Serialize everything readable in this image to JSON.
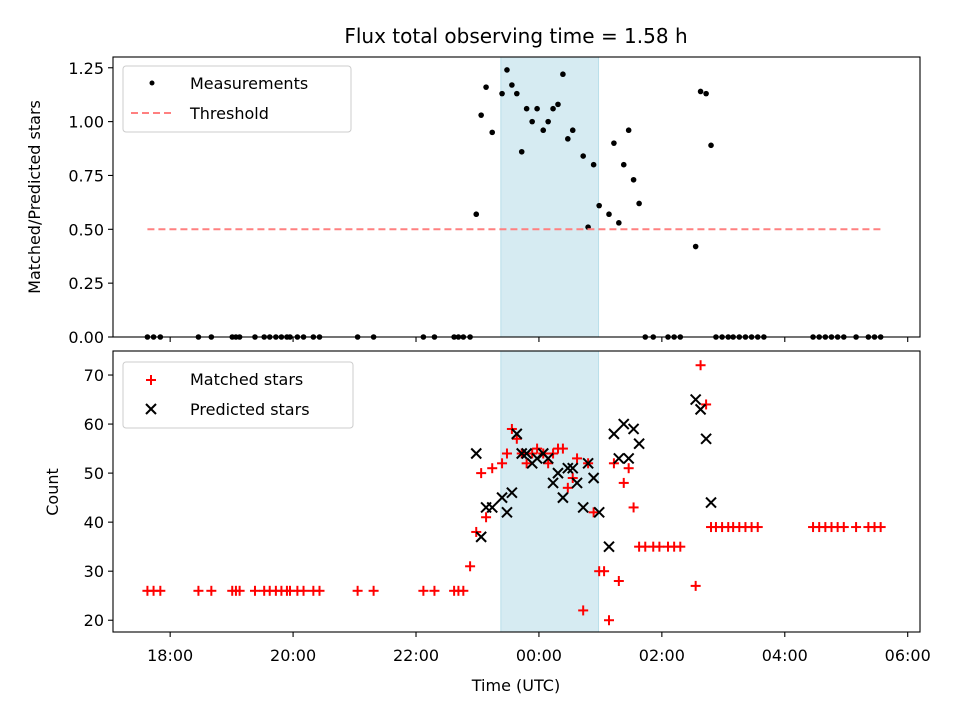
{
  "chart_data": [
    {
      "type": "scatter",
      "title": "Flux total observing time = 1.58 h",
      "xlabel": "",
      "ylabel": "Matched/Predicted stars",
      "xlim_hours": [
        17.07,
        30.2
      ],
      "ylim": [
        0,
        1.3
      ],
      "yticks": [
        0,
        0.25,
        0.5,
        0.75,
        1.0,
        1.25
      ],
      "ytick_labels": [
        "0.00",
        "0.25",
        "0.50",
        "0.75",
        "1.00",
        "1.25"
      ],
      "xticks_hours": [
        18,
        20,
        22,
        24,
        26,
        28,
        30
      ],
      "grid": false,
      "legend_position": "top-left",
      "shaded_interval_hours": [
        23.38,
        24.97
      ],
      "series": [
        {
          "name": "Measurements",
          "kind": "dot",
          "color": "#000000",
          "x": [
            17.63,
            17.73,
            17.84,
            18.46,
            18.67,
            19.01,
            19.07,
            19.13,
            19.38,
            19.53,
            19.62,
            19.72,
            19.81,
            19.9,
            19.95,
            20.07,
            20.17,
            20.33,
            20.43,
            21.05,
            21.31,
            22.12,
            22.3,
            22.62,
            22.69,
            22.77,
            22.88,
            22.98,
            23.06,
            23.14,
            23.24,
            23.4,
            23.48,
            23.56,
            23.64,
            23.72,
            23.8,
            23.89,
            23.97,
            24.07,
            24.15,
            24.23,
            24.31,
            24.39,
            24.47,
            24.55,
            24.72,
            24.8,
            24.89,
            24.98,
            25.14,
            25.22,
            25.3,
            25.38,
            25.46,
            25.54,
            25.63,
            25.73,
            25.86,
            26.1,
            26.2,
            26.3,
            26.55,
            26.63,
            26.72,
            26.8,
            26.88,
            26.98,
            27.08,
            27.16,
            27.26,
            27.36,
            27.46,
            27.56,
            27.66,
            28.46,
            28.56,
            28.66,
            28.76,
            28.86,
            28.96,
            29.16,
            29.36,
            29.46,
            29.56
          ],
          "y": [
            0,
            0,
            0,
            0,
            0,
            0,
            0,
            0,
            0,
            0,
            0,
            0,
            0,
            0,
            0,
            0,
            0,
            0,
            0,
            0,
            0,
            0,
            0,
            0,
            0,
            0,
            0,
            0.57,
            1.03,
            1.16,
            0.95,
            1.13,
            1.24,
            1.17,
            1.13,
            0.86,
            1.06,
            1.0,
            1.06,
            0.96,
            1.0,
            1.06,
            1.08,
            1.22,
            0.92,
            0.96,
            0.84,
            0.51,
            0.8,
            0.61,
            0.57,
            0.9,
            0.53,
            0.8,
            0.96,
            0.73,
            0.62,
            0,
            0,
            0,
            0,
            0,
            0.42,
            1.14,
            1.13,
            0.89,
            0,
            0,
            0,
            0,
            0,
            0,
            0,
            0,
            0,
            0,
            0,
            0,
            0,
            0,
            0,
            0,
            0,
            0,
            0
          ]
        },
        {
          "name": "Threshold",
          "kind": "dashed-line",
          "color": "#ff8080",
          "x": [
            17.63,
            29.56
          ],
          "y": [
            0.5,
            0.5
          ]
        }
      ]
    },
    {
      "type": "scatter",
      "title": "",
      "xlabel": "Time (UTC)",
      "ylabel": "Count",
      "xlim_hours": [
        17.07,
        30.2
      ],
      "ylim": [
        17.6,
        74.9
      ],
      "yticks": [
        20,
        30,
        40,
        50,
        60,
        70
      ],
      "ytick_labels": [
        "20",
        "30",
        "40",
        "50",
        "60",
        "70"
      ],
      "xticks_hours": [
        18,
        20,
        22,
        24,
        26,
        28,
        30
      ],
      "xtick_labels": [
        "18:00",
        "20:00",
        "22:00",
        "00:00",
        "02:00",
        "04:00",
        "06:00"
      ],
      "grid": false,
      "legend_position": "top-left",
      "shaded_interval_hours": [
        23.38,
        24.97
      ],
      "series": [
        {
          "name": "Matched stars",
          "kind": "plus",
          "color": "#ff0000",
          "x": [
            17.63,
            17.73,
            17.84,
            18.46,
            18.67,
            19.01,
            19.07,
            19.13,
            19.38,
            19.53,
            19.62,
            19.72,
            19.81,
            19.9,
            19.95,
            20.07,
            20.17,
            20.33,
            20.43,
            21.05,
            21.31,
            22.12,
            22.3,
            22.62,
            22.69,
            22.77,
            22.88,
            22.98,
            23.06,
            23.14,
            23.24,
            23.4,
            23.48,
            23.56,
            23.64,
            23.72,
            23.8,
            23.89,
            23.97,
            24.07,
            24.15,
            24.23,
            24.31,
            24.39,
            24.47,
            24.55,
            24.62,
            24.72,
            24.8,
            24.89,
            24.98,
            25.06,
            25.14,
            25.22,
            25.3,
            25.38,
            25.46,
            25.54,
            25.63,
            25.73,
            25.86,
            25.96,
            26.1,
            26.2,
            26.3,
            26.55,
            26.63,
            26.72,
            26.8,
            26.88,
            26.98,
            27.08,
            27.16,
            27.26,
            27.36,
            27.46,
            27.56,
            28.46,
            28.56,
            28.66,
            28.76,
            28.86,
            28.96,
            29.16,
            29.36,
            29.46,
            29.56
          ],
          "y": [
            26,
            26,
            26,
            26,
            26,
            26,
            26,
            26,
            26,
            26,
            26,
            26,
            26,
            26,
            26,
            26,
            26,
            26,
            26,
            26,
            26,
            26,
            26,
            26,
            26,
            26,
            31,
            38,
            50,
            41,
            51,
            52,
            54,
            59,
            57,
            54,
            52,
            54,
            55,
            54,
            52,
            54,
            55,
            55,
            47,
            49,
            53,
            22,
            52,
            42,
            30,
            30,
            20,
            52,
            28,
            48,
            51,
            43,
            35,
            35,
            35,
            35,
            35,
            35,
            35,
            27,
            72,
            64,
            39,
            39,
            39,
            39,
            39,
            39,
            39,
            39,
            39,
            39,
            39,
            39,
            39,
            39,
            39,
            39,
            39,
            39,
            39
          ]
        },
        {
          "name": "Predicted stars",
          "kind": "x",
          "color": "#000000",
          "x": [
            22.98,
            23.06,
            23.14,
            23.24,
            23.4,
            23.48,
            23.56,
            23.64,
            23.72,
            23.8,
            23.89,
            23.97,
            24.07,
            24.15,
            24.23,
            24.31,
            24.39,
            24.47,
            24.55,
            24.62,
            24.72,
            24.8,
            24.89,
            24.98,
            25.14,
            25.22,
            25.3,
            25.38,
            25.46,
            25.54,
            25.63,
            26.55,
            26.63,
            26.72,
            26.8
          ],
          "y": [
            54,
            37,
            43,
            43,
            45,
            42,
            46,
            58,
            54,
            54,
            52,
            53,
            54,
            53,
            48,
            50,
            45,
            51,
            51,
            48,
            43,
            52,
            49,
            42,
            35,
            58,
            53,
            60,
            53,
            59,
            56,
            65,
            63,
            57,
            44
          ]
        }
      ]
    }
  ],
  "legend_top": [
    {
      "label": "Measurements"
    },
    {
      "label": "Threshold"
    }
  ],
  "legend_bottom": [
    {
      "label": "Matched stars"
    },
    {
      "label": "Predicted stars"
    }
  ]
}
